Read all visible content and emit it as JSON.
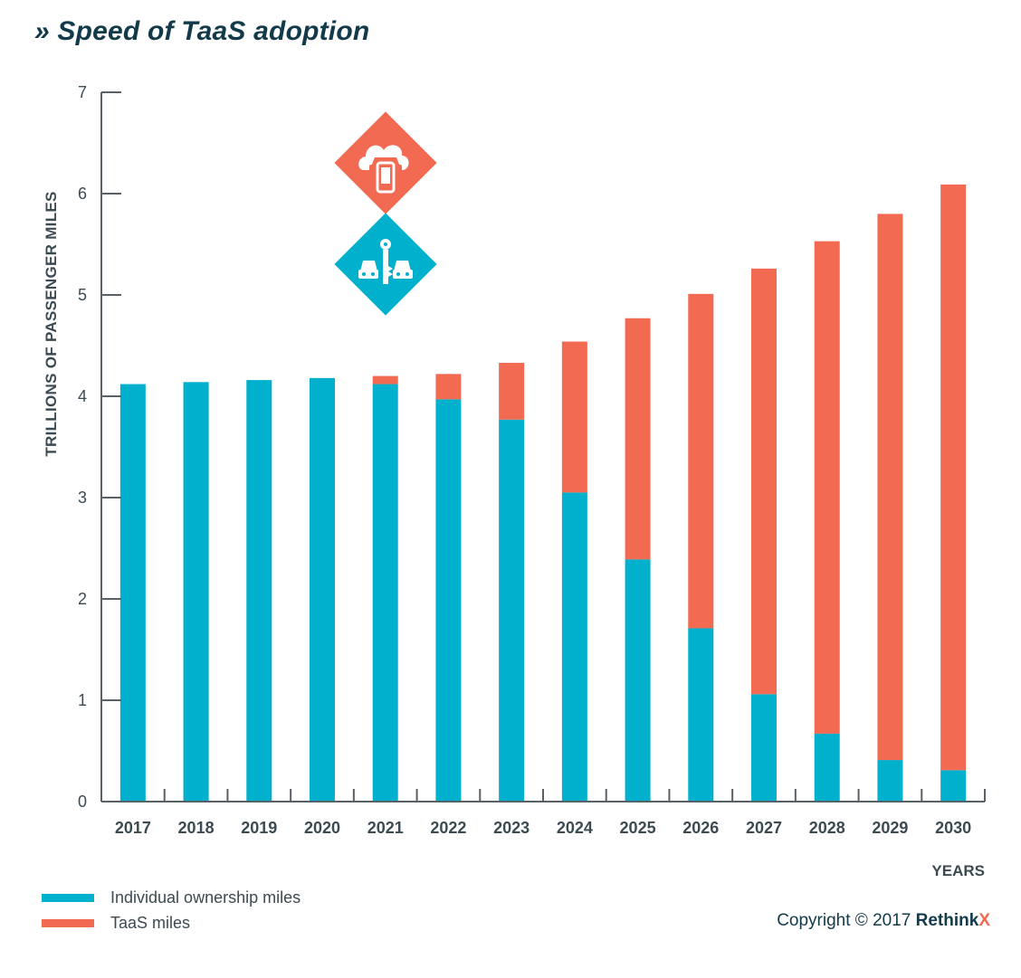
{
  "title": "» Speed of TaaS adoption",
  "colors": {
    "individual": "#00b0cc",
    "taas": "#f26a51",
    "axis": "#5a6166",
    "text": "#3c4a52",
    "brand": "#123a4a"
  },
  "chart_data": {
    "type": "bar",
    "stacked": true,
    "categories": [
      "2017",
      "2018",
      "2019",
      "2020",
      "2021",
      "2022",
      "2023",
      "2024",
      "2025",
      "2026",
      "2027",
      "2028",
      "2029",
      "2030"
    ],
    "series": [
      {
        "name": "Individual ownership miles",
        "color": "#00b0cc",
        "values": [
          4.12,
          4.14,
          4.16,
          4.18,
          4.12,
          3.97,
          3.77,
          3.05,
          2.39,
          1.71,
          1.06,
          0.67,
          0.41,
          0.31
        ]
      },
      {
        "name": "TaaS miles",
        "color": "#f26a51",
        "values": [
          0.0,
          0.0,
          0.0,
          0.0,
          0.08,
          0.25,
          0.56,
          1.49,
          2.38,
          3.3,
          4.2,
          4.86,
          5.39,
          5.78
        ]
      }
    ],
    "ylabel": "TRILLIONS OF PASSENGER MILES",
    "xlabel": "YEARS",
    "ylim": [
      0,
      7
    ],
    "yticks": [
      "0",
      "1",
      "2",
      "3",
      "4",
      "5",
      "6",
      "7"
    ],
    "grid": false,
    "legend_position": "bottom-left"
  },
  "icons": [
    {
      "name": "taas-cloud-car-phone-icon",
      "color": "#f26a51"
    },
    {
      "name": "car-key-ownership-icon",
      "color": "#00b0cc"
    }
  ],
  "copyright": {
    "text": "Copyright © 2017 ",
    "brand": "Rethink",
    "brand_x": "X"
  }
}
